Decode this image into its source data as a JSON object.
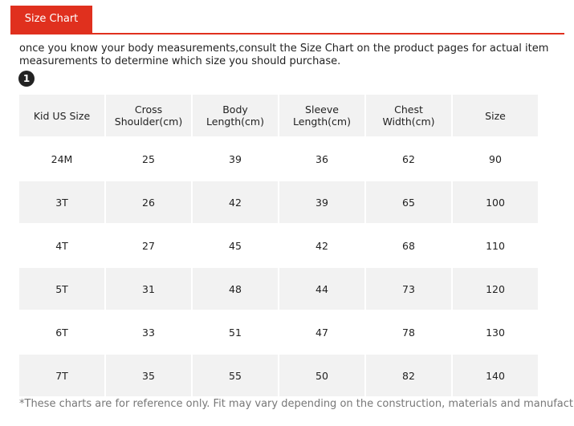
{
  "tab": "Size Chart",
  "intro": "once you know your body measurements,consult the Size Chart on the product pages for actual item measurements to determine which size you should purchase.",
  "step": "1",
  "table": {
    "header": [
      "Kid US Size",
      "Cross Shoulder(cm)",
      "Body Length(cm)",
      "Sleeve Length(cm)",
      "Chest Width(cm)",
      "Size"
    ],
    "rows": [
      [
        "24M",
        "25",
        "39",
        "36",
        "62",
        "90"
      ],
      [
        "3T",
        "26",
        "42",
        "39",
        "65",
        "100"
      ],
      [
        "4T",
        "27",
        "45",
        "42",
        "68",
        "110"
      ],
      [
        "5T",
        "31",
        "48",
        "44",
        "73",
        "120"
      ],
      [
        "6T",
        "33",
        "51",
        "47",
        "78",
        "130"
      ],
      [
        "7T",
        "35",
        "55",
        "50",
        "82",
        "140"
      ]
    ]
  },
  "note": "*These charts are for reference only. Fit may vary depending on the construction, materials and manufacturer."
}
